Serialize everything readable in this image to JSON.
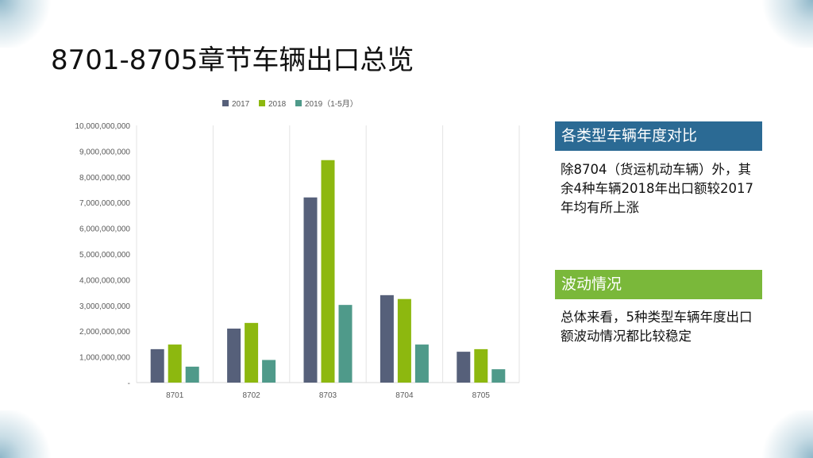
{
  "page_title": "8701-8705章节车辆出口总览",
  "panels": {
    "panel1": {
      "heading": "各类型车辆年度对比",
      "text": "除8704（货运机动车辆）外，其余4种车辆2018年出口额较2017年均有所上涨"
    },
    "panel2": {
      "heading": "波动情况",
      "text": "总体来看，5种类型车辆年度出口额波动情况都比较稳定"
    }
  },
  "colors": {
    "series_2017": "#56607a",
    "series_2018": "#8db80f",
    "series_2019": "#4f9a8a",
    "panel1_bg": "#2b6a94",
    "panel2_bg": "#7ab83a"
  },
  "chart_data": {
    "type": "bar",
    "categories": [
      "8701",
      "8702",
      "8703",
      "8704",
      "8705"
    ],
    "series": [
      {
        "name": "2017",
        "values": [
          1300000000,
          2100000000,
          7200000000,
          3400000000,
          1200000000
        ]
      },
      {
        "name": "2018",
        "values": [
          1480000000,
          2320000000,
          8650000000,
          3250000000,
          1300000000
        ]
      },
      {
        "name": "2019（1-5月）",
        "values": [
          620000000,
          880000000,
          3020000000,
          1480000000,
          520000000
        ]
      }
    ],
    "ylim": [
      0,
      10000000000
    ],
    "yticks": [
      "-",
      "1,000,000,000",
      "2,000,000,000",
      "3,000,000,000",
      "4,000,000,000",
      "5,000,000,000",
      "6,000,000,000",
      "7,000,000,000",
      "8,000,000,000",
      "9,000,000,000",
      "10,000,000,000"
    ],
    "legend_position": "top",
    "grid": "vertical category separators"
  }
}
